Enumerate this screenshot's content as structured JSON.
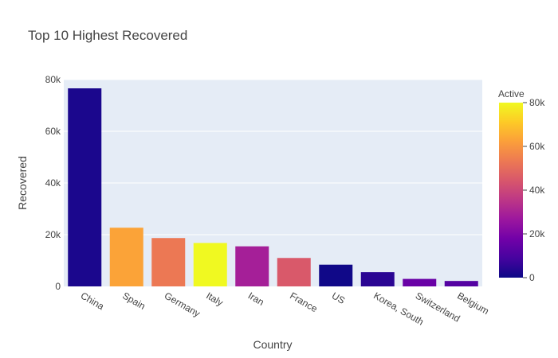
{
  "chart_data": {
    "type": "bar",
    "title": "Top 10 Highest Recovered",
    "xlabel": "Country",
    "ylabel": "Recovered",
    "categories": [
      "China",
      "Spain",
      "Germany",
      "Italy",
      "Iran",
      "France",
      "US",
      "Korea, South",
      "Switzerland",
      "Belgium"
    ],
    "values": [
      76600,
      22700,
      18700,
      16800,
      15500,
      11000,
      8400,
      5500,
      2900,
      2100
    ],
    "color_values": [
      2200,
      63000,
      53000,
      80000,
      29000,
      45000,
      400,
      4600,
      16000,
      12000
    ],
    "ylim": [
      0,
      80000
    ],
    "yticks": [
      0,
      20000,
      40000,
      60000,
      80000
    ],
    "ytick_labels": [
      "0",
      "20k",
      "40k",
      "60k",
      "80k"
    ],
    "grid": true,
    "colorbar": {
      "title": "Active",
      "range": [
        0,
        80000
      ],
      "ticks": [
        0,
        20000,
        40000,
        60000,
        80000
      ],
      "tick_labels": [
        "0",
        "20k",
        "40k",
        "60k",
        "80k"
      ],
      "colorscale": [
        "#0d0887",
        "#46039f",
        "#7201a8",
        "#9c179e",
        "#bd3786",
        "#d8576b",
        "#ed7953",
        "#fb9f3a",
        "#fdca26",
        "#f0f921"
      ],
      "placement": "right"
    },
    "plot_background": "#e5ecf6"
  }
}
